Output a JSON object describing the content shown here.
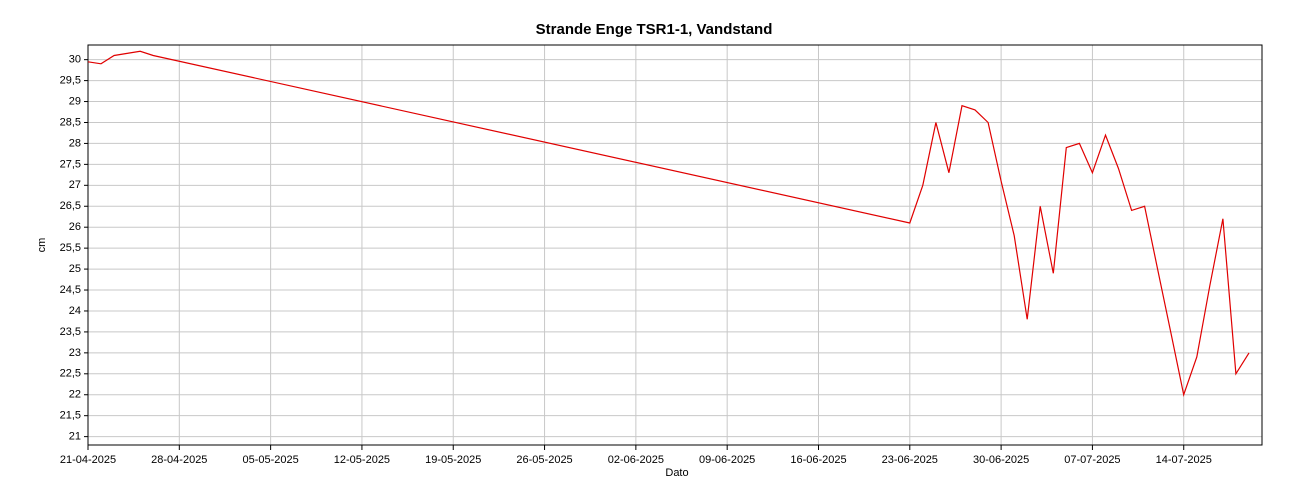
{
  "chart_data": {
    "type": "line",
    "title": "Strande Enge TSR1-1, Vandstand",
    "x_label": "Dato",
    "y_label": "cm",
    "x": [
      "2025-04-21",
      "2025-04-22",
      "2025-04-23",
      "2025-04-24",
      "2025-04-25",
      "2025-04-26",
      "2025-06-23",
      "2025-06-24",
      "2025-06-25",
      "2025-06-26",
      "2025-06-27",
      "2025-06-28",
      "2025-06-29",
      "2025-06-30",
      "2025-07-01",
      "2025-07-02",
      "2025-07-03",
      "2025-07-04",
      "2025-07-05",
      "2025-07-06",
      "2025-07-07",
      "2025-07-08",
      "2025-07-09",
      "2025-07-10",
      "2025-07-11",
      "2025-07-12",
      "2025-07-13",
      "2025-07-14",
      "2025-07-15",
      "2025-07-16",
      "2025-07-17",
      "2025-07-18",
      "2025-07-19"
    ],
    "series": [
      {
        "name": "Vandstand",
        "color": "#e00000",
        "values": [
          29.95,
          29.9,
          30.1,
          30.15,
          30.2,
          30.1,
          26.1,
          27.0,
          28.5,
          27.3,
          28.9,
          28.8,
          28.5,
          27.1,
          25.8,
          23.8,
          26.5,
          24.9,
          27.9,
          28.0,
          27.3,
          28.2,
          27.4,
          26.4,
          26.5,
          25.0,
          23.5,
          22.0,
          22.9,
          24.6,
          26.2,
          22.5,
          23.0
        ]
      }
    ],
    "xlim": [
      "2025-04-21",
      "2025-07-20"
    ],
    "xticks": [
      {
        "value": "2025-04-21",
        "label": "21-04-2025"
      },
      {
        "value": "2025-04-28",
        "label": "28-04-2025"
      },
      {
        "value": "2025-05-05",
        "label": "05-05-2025"
      },
      {
        "value": "2025-05-12",
        "label": "12-05-2025"
      },
      {
        "value": "2025-05-19",
        "label": "19-05-2025"
      },
      {
        "value": "2025-05-26",
        "label": "26-05-2025"
      },
      {
        "value": "2025-06-02",
        "label": "02-06-2025"
      },
      {
        "value": "2025-06-09",
        "label": "09-06-2025"
      },
      {
        "value": "2025-06-16",
        "label": "16-06-2025"
      },
      {
        "value": "2025-06-23",
        "label": "23-06-2025"
      },
      {
        "value": "2025-06-30",
        "label": "30-06-2025"
      },
      {
        "value": "2025-07-07",
        "label": "07-07-2025"
      },
      {
        "value": "2025-07-14",
        "label": "14-07-2025"
      }
    ],
    "ylim": [
      20.8,
      30.35
    ],
    "yticks": [
      21,
      {
        "value": 21.5,
        "label": "21,5"
      },
      22,
      {
        "value": 22.5,
        "label": "22,5"
      },
      23,
      {
        "value": 23.5,
        "label": "23,5"
      },
      24,
      {
        "value": 24.5,
        "label": "24,5"
      },
      25,
      {
        "value": 25.5,
        "label": "25,5"
      },
      26,
      {
        "value": 26.5,
        "label": "26,5"
      },
      27,
      {
        "value": 27.5,
        "label": "27,5"
      },
      28,
      {
        "value": 28.5,
        "label": "28,5"
      },
      29,
      {
        "value": 29.5,
        "label": "29,5"
      },
      30
    ],
    "grid": true
  }
}
